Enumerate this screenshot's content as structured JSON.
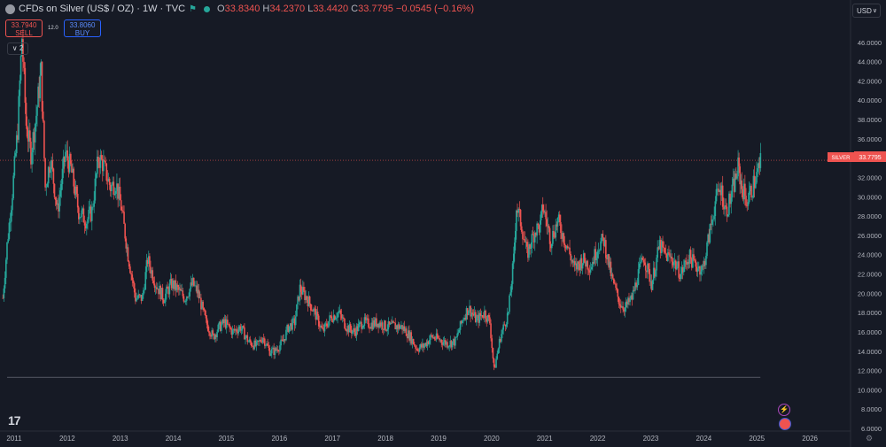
{
  "header": {
    "title": "CFDs on Silver (US$ / OZ) · 1W · TVC",
    "open_label": "O",
    "open": "33.8340",
    "high_label": "H",
    "high": "34.2370",
    "low_label": "L",
    "low": "33.4420",
    "close_label": "C",
    "close": "33.7795",
    "change": "−0.0545 (−0.16%)"
  },
  "trade": {
    "sell_price": "33.7940",
    "sell_label": "SELL",
    "spread": "12.0",
    "buy_price": "33.8060",
    "buy_label": "BUY"
  },
  "indicators_toggle": "2",
  "currency": "USD",
  "colors": {
    "up": "#26a69a",
    "down": "#ef5350",
    "background": "#161a25",
    "grid": "#1e222d",
    "text": "#b2b5be"
  },
  "icons": [
    "chevron-down-icon",
    "flag-icon",
    "lightning-icon",
    "us-flag-icon",
    "tradingview-logo",
    "settings-icon"
  ],
  "chart_data": {
    "type": "candlestick",
    "symbol_label": "SILVER",
    "last_price": 33.7795,
    "last_price_label": "33.7795",
    "ylim": [
      6,
      48
    ],
    "y_ticks": [
      "46.0000",
      "44.0000",
      "42.0000",
      "40.0000",
      "38.0000",
      "36.0000",
      "32.0000",
      "30.0000",
      "28.0000",
      "26.0000",
      "24.0000",
      "22.0000",
      "20.0000",
      "18.0000",
      "16.0000",
      "14.0000",
      "12.0000",
      "10.0000",
      "8.0000",
      "6.0000"
    ],
    "x_ticks": [
      "2011",
      "2012",
      "2013",
      "2014",
      "2015",
      "2016",
      "2017",
      "2018",
      "2019",
      "2020",
      "2021",
      "2022",
      "2023",
      "2024",
      "2025",
      "2026"
    ],
    "xlim": [
      2010.9,
      2026.9
    ],
    "reference_line": 11.3,
    "series": [
      {
        "x": 2010.92,
        "y": 19.5
      },
      {
        "x": 2011.0,
        "y": 25.0
      },
      {
        "x": 2011.1,
        "y": 30.5
      },
      {
        "x": 2011.2,
        "y": 37.0
      },
      {
        "x": 2011.28,
        "y": 46.5
      },
      {
        "x": 2011.36,
        "y": 37.5
      },
      {
        "x": 2011.45,
        "y": 34.5
      },
      {
        "x": 2011.55,
        "y": 38.5
      },
      {
        "x": 2011.64,
        "y": 43.0
      },
      {
        "x": 2011.72,
        "y": 31.0
      },
      {
        "x": 2011.82,
        "y": 34.0
      },
      {
        "x": 2011.95,
        "y": 28.5
      },
      {
        "x": 2012.1,
        "y": 34.5
      },
      {
        "x": 2012.2,
        "y": 33.0
      },
      {
        "x": 2012.35,
        "y": 28.5
      },
      {
        "x": 2012.5,
        "y": 27.5
      },
      {
        "x": 2012.6,
        "y": 28.5
      },
      {
        "x": 2012.72,
        "y": 34.0
      },
      {
        "x": 2012.8,
        "y": 33.5
      },
      {
        "x": 2012.95,
        "y": 31.0
      },
      {
        "x": 2013.05,
        "y": 31.5
      },
      {
        "x": 2013.15,
        "y": 29.0
      },
      {
        "x": 2013.28,
        "y": 24.0
      },
      {
        "x": 2013.42,
        "y": 19.5
      },
      {
        "x": 2013.55,
        "y": 19.5
      },
      {
        "x": 2013.65,
        "y": 23.5
      },
      {
        "x": 2013.8,
        "y": 21.0
      },
      {
        "x": 2013.95,
        "y": 19.5
      },
      {
        "x": 2014.1,
        "y": 21.0
      },
      {
        "x": 2014.2,
        "y": 20.5
      },
      {
        "x": 2014.35,
        "y": 19.5
      },
      {
        "x": 2014.5,
        "y": 21.0
      },
      {
        "x": 2014.6,
        "y": 20.0
      },
      {
        "x": 2014.75,
        "y": 17.0
      },
      {
        "x": 2014.88,
        "y": 15.5
      },
      {
        "x": 2015.0,
        "y": 16.5
      },
      {
        "x": 2015.1,
        "y": 17.0
      },
      {
        "x": 2015.25,
        "y": 16.0
      },
      {
        "x": 2015.4,
        "y": 16.5
      },
      {
        "x": 2015.55,
        "y": 15.0
      },
      {
        "x": 2015.7,
        "y": 14.5
      },
      {
        "x": 2015.82,
        "y": 15.5
      },
      {
        "x": 2015.95,
        "y": 14.0
      },
      {
        "x": 2016.05,
        "y": 14.0
      },
      {
        "x": 2016.2,
        "y": 15.0
      },
      {
        "x": 2016.3,
        "y": 16.5
      },
      {
        "x": 2016.42,
        "y": 17.0
      },
      {
        "x": 2016.52,
        "y": 20.5
      },
      {
        "x": 2016.65,
        "y": 19.5
      },
      {
        "x": 2016.8,
        "y": 18.0
      },
      {
        "x": 2016.95,
        "y": 16.0
      },
      {
        "x": 2017.1,
        "y": 17.5
      },
      {
        "x": 2017.25,
        "y": 18.0
      },
      {
        "x": 2017.4,
        "y": 16.5
      },
      {
        "x": 2017.55,
        "y": 16.0
      },
      {
        "x": 2017.7,
        "y": 17.0
      },
      {
        "x": 2017.85,
        "y": 16.8
      },
      {
        "x": 2018.0,
        "y": 17.0
      },
      {
        "x": 2018.15,
        "y": 16.5
      },
      {
        "x": 2018.3,
        "y": 16.6
      },
      {
        "x": 2018.45,
        "y": 16.5
      },
      {
        "x": 2018.6,
        "y": 15.5
      },
      {
        "x": 2018.72,
        "y": 14.3
      },
      {
        "x": 2018.85,
        "y": 14.5
      },
      {
        "x": 2019.0,
        "y": 15.5
      },
      {
        "x": 2019.15,
        "y": 15.2
      },
      {
        "x": 2019.3,
        "y": 14.8
      },
      {
        "x": 2019.45,
        "y": 15.0
      },
      {
        "x": 2019.6,
        "y": 17.5
      },
      {
        "x": 2019.7,
        "y": 18.5
      },
      {
        "x": 2019.85,
        "y": 17.2
      },
      {
        "x": 2020.0,
        "y": 18.0
      },
      {
        "x": 2020.1,
        "y": 17.0
      },
      {
        "x": 2020.18,
        "y": 12.0
      },
      {
        "x": 2020.3,
        "y": 15.5
      },
      {
        "x": 2020.45,
        "y": 18.0
      },
      {
        "x": 2020.55,
        "y": 23.5
      },
      {
        "x": 2020.6,
        "y": 29.0
      },
      {
        "x": 2020.7,
        "y": 27.0
      },
      {
        "x": 2020.8,
        "y": 24.0
      },
      {
        "x": 2020.95,
        "y": 26.5
      },
      {
        "x": 2021.05,
        "y": 27.0
      },
      {
        "x": 2021.1,
        "y": 29.0
      },
      {
        "x": 2021.25,
        "y": 25.5
      },
      {
        "x": 2021.38,
        "y": 27.5
      },
      {
        "x": 2021.55,
        "y": 25.0
      },
      {
        "x": 2021.7,
        "y": 22.5
      },
      {
        "x": 2021.85,
        "y": 23.5
      },
      {
        "x": 2022.0,
        "y": 22.8
      },
      {
        "x": 2022.15,
        "y": 25.0
      },
      {
        "x": 2022.25,
        "y": 25.5
      },
      {
        "x": 2022.4,
        "y": 21.5
      },
      {
        "x": 2022.55,
        "y": 19.0
      },
      {
        "x": 2022.65,
        "y": 18.5
      },
      {
        "x": 2022.78,
        "y": 19.5
      },
      {
        "x": 2022.9,
        "y": 22.0
      },
      {
        "x": 2023.0,
        "y": 23.8
      },
      {
        "x": 2023.15,
        "y": 21.0
      },
      {
        "x": 2023.3,
        "y": 25.0
      },
      {
        "x": 2023.4,
        "y": 24.0
      },
      {
        "x": 2023.55,
        "y": 23.5
      },
      {
        "x": 2023.7,
        "y": 22.0
      },
      {
        "x": 2023.85,
        "y": 23.8
      },
      {
        "x": 2024.0,
        "y": 22.8
      },
      {
        "x": 2024.12,
        "y": 22.5
      },
      {
        "x": 2024.25,
        "y": 26.5
      },
      {
        "x": 2024.35,
        "y": 29.5
      },
      {
        "x": 2024.45,
        "y": 31.0
      },
      {
        "x": 2024.55,
        "y": 28.5
      },
      {
        "x": 2024.65,
        "y": 30.0
      },
      {
        "x": 2024.78,
        "y": 33.0
      },
      {
        "x": 2024.85,
        "y": 31.0
      },
      {
        "x": 2024.95,
        "y": 29.5
      },
      {
        "x": 2025.05,
        "y": 31.0
      },
      {
        "x": 2025.15,
        "y": 32.5
      },
      {
        "x": 2025.22,
        "y": 33.8
      }
    ]
  }
}
